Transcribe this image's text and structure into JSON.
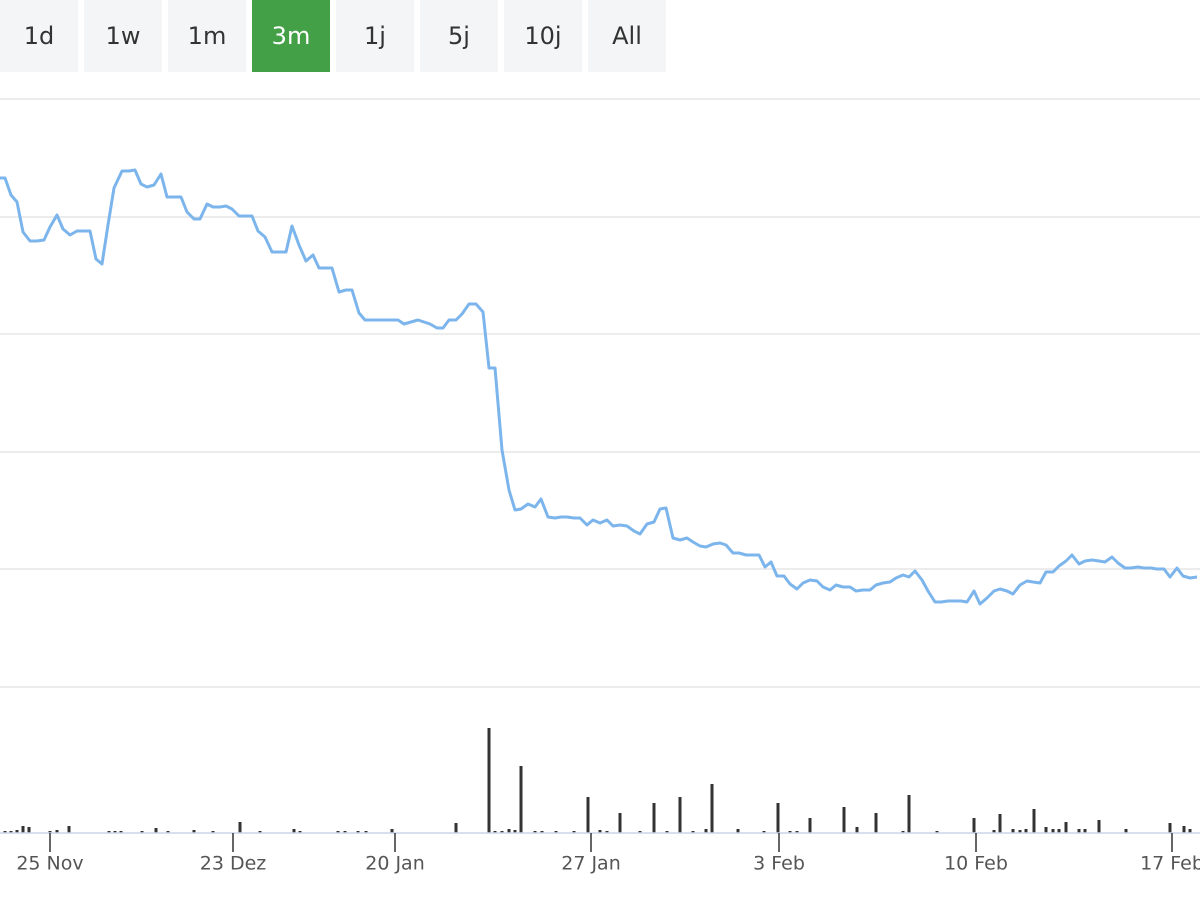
{
  "chart_data": {
    "type": "stock",
    "buttons": [
      "1d",
      "1w",
      "1m",
      "3m",
      "1j",
      "5j",
      "10j",
      "All"
    ],
    "active_button": 3,
    "color": "#7cb5ec",
    "x": [
      0,
      0.5,
      1.1,
      1.7,
      2.3,
      3.0,
      3.7,
      4.4,
      5.0,
      5.7,
      6.3,
      7.0,
      7.7,
      8.4,
      9.0,
      9.6,
      10.2,
      10.8,
      11.4,
      12.2,
      12.9,
      13.5,
      14.1,
      14.7,
      15.4,
      16.1,
      16.7,
      17.4,
      18.1,
      18.7,
      19.4,
      20.0,
      20.7,
      21.3,
      22.0,
      22.6,
      23.2,
      23.9,
      24.5,
      25.2,
      25.8,
      26.5,
      27.2,
      27.9,
      28.6,
      29.2,
      29.9,
      30.6,
      31.3,
      31.9,
      32.6,
      33.2,
      33.9,
      34.6,
      35.2,
      35.9,
      36.5,
      37.2,
      37.9,
      38.6,
      39.2,
      39.8,
      40.4,
      41.1,
      41.8,
      42.4,
      43.0,
      43.7,
      44.3,
      44.9,
      45.6,
      46.2,
      46.9,
      47.6,
      48.3,
      48.9,
      49.5,
      50.2,
      50.9,
      51.5,
      52.1,
      52.8,
      53.5,
      54.1,
      54.8,
      55.5,
      56.1,
      56.7,
      57.4,
      58.0,
      58.7,
      59.3,
      60.0,
      60.7,
      61.3,
      62.0,
      62.7,
      63.4,
      64.0,
      64.7,
      65.4,
      66.0,
      66.6,
      67.3,
      68.0,
      68.7,
      69.3,
      70.0,
      70.6,
      71.3,
      72.0,
      72.6,
      73.3,
      73.9,
      74.6,
      75.3,
      75.9,
      76.5,
      77.1,
      77.7,
      78.4,
      79.0,
      79.7,
      80.3,
      81.0,
      81.7,
      82.3,
      83.0,
      83.6,
      84.3,
      85.0,
      85.6,
      86.3,
      87.0,
      87.6,
      88.3,
      89.0,
      89.6,
      90.3,
      90.9,
      91.5,
      92.2,
      92.8,
      93.5,
      94.1,
      94.8,
      95.4,
      96.1,
      96.7,
      97.4,
      98.0,
      98.7,
      99.4,
      100.0,
      100.7,
      101.3,
      102.0,
      102.7,
      103.3,
      104.0,
      104.6,
      105.3,
      105.9,
      106.6,
      107.2,
      107.9,
      108.5,
      109.2,
      109.9,
      110.5,
      111.2,
      111.8,
      112.5,
      113.1,
      113.8,
      114.4,
      115.1,
      115.7,
      116.4,
      117.0,
      117.7,
      118.3,
      119.0,
      119.7
    ],
    "values": [
      509,
      509,
      492,
      485,
      455,
      446,
      446,
      447,
      460,
      472,
      458,
      452,
      456,
      456,
      456,
      428,
      423,
      462,
      499,
      516,
      516,
      517,
      503,
      500,
      502,
      513,
      490,
      490,
      490,
      475,
      468,
      468,
      483,
      480,
      480,
      481,
      478,
      471,
      471,
      471,
      456,
      450,
      435,
      435,
      435,
      461,
      442,
      426,
      432,
      419,
      419,
      419,
      395,
      397,
      397,
      374,
      367,
      367,
      367,
      367,
      367,
      367,
      363,
      365,
      367,
      365,
      363,
      359,
      359,
      367,
      367,
      373,
      383,
      383,
      375,
      319,
      319,
      237,
      197,
      177,
      178,
      183,
      180,
      188,
      170,
      169,
      170,
      170,
      169,
      169,
      162,
      167,
      164,
      167,
      161,
      162,
      161,
      156,
      153,
      163,
      165,
      178,
      179,
      149,
      147,
      149,
      145,
      141,
      140,
      143,
      144,
      142,
      134,
      134,
      132,
      132,
      132,
      120,
      125,
      111,
      111,
      103,
      98,
      104,
      107,
      106,
      100,
      97,
      102,
      100,
      100,
      96,
      97,
      97,
      102,
      104,
      105,
      109,
      112,
      110,
      116,
      107,
      96,
      85,
      85,
      86,
      86,
      86,
      85,
      96,
      83,
      89,
      96,
      98,
      96,
      93,
      102,
      106,
      105,
      104,
      115,
      115,
      121,
      126,
      132,
      123,
      126,
      127,
      126,
      125,
      130,
      124,
      119,
      119,
      120,
      119,
      119,
      118,
      118,
      110,
      119,
      111,
      109,
      110
    ],
    "xlim": [
      0,
      120
    ],
    "ylim": [
      0,
      588
    ],
    "grid_lines": [
      0,
      118,
      235,
      353,
      470,
      588
    ],
    "xticks": [
      {
        "value": 5.0,
        "label": "25 Nov"
      },
      {
        "value": 23.3,
        "label": "23 Dez"
      },
      {
        "value": 39.5,
        "label": "20 Jan"
      },
      {
        "value": 59.1,
        "label": "27 Jan"
      },
      {
        "value": 77.9,
        "label": "3 Feb"
      },
      {
        "value": 97.6,
        "label": "10 Feb"
      },
      {
        "value": 117.2,
        "label": "17 Feb"
      }
    ],
    "volume": {
      "color": "#333333",
      "ylim": [
        0,
        146
      ],
      "x": [
        0.5,
        1.1,
        1.7,
        2.3,
        2.9,
        5.0,
        5.7,
        6.9,
        10.9,
        11.5,
        12.1,
        14.2,
        15.6,
        16.8,
        19.4,
        21.3,
        24.0,
        26.0,
        29.4,
        30.0,
        33.8,
        34.5,
        35.8,
        36.6,
        39.2,
        45.6,
        48.9,
        49.5,
        50.2,
        50.9,
        51.5,
        52.1,
        53.5,
        54.2,
        55.6,
        57.4,
        58.8,
        60.0,
        60.7,
        62.0,
        64.0,
        65.4,
        66.7,
        68.0,
        69.3,
        70.6,
        71.2,
        73.8,
        76.4,
        77.8,
        79.0,
        79.7,
        81.0,
        84.4,
        85.7,
        87.6,
        90.3,
        90.9,
        93.7,
        97.4,
        99.4,
        100.0,
        101.3,
        102.0,
        102.6,
        103.4,
        104.6,
        105.3,
        105.9,
        106.6,
        107.9,
        108.5,
        109.9,
        112.6,
        117.0,
        118.4,
        119.0
      ],
      "values": [
        2,
        2,
        3,
        7,
        6,
        2,
        3,
        7,
        2,
        2,
        2,
        2,
        5,
        2,
        3,
        2,
        11,
        2,
        4,
        2,
        2,
        2,
        2,
        2,
        4,
        10,
        105,
        2,
        2,
        4,
        3,
        67,
        2,
        2,
        2,
        2,
        36,
        3,
        2,
        20,
        2,
        30,
        2,
        36,
        2,
        4,
        49,
        4,
        2,
        30,
        2,
        2,
        15,
        26,
        6,
        20,
        2,
        38,
        2,
        15,
        3,
        19,
        4,
        3,
        4,
        24,
        6,
        4,
        4,
        11,
        4,
        4,
        13,
        4,
        10,
        7,
        4
      ]
    }
  }
}
